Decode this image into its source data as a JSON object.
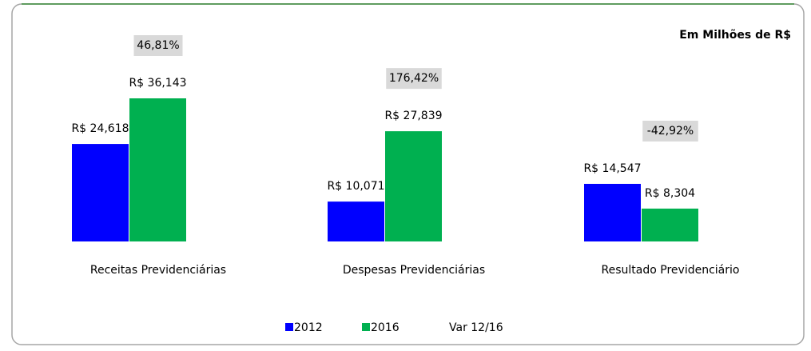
{
  "chart_data": {
    "type": "bar",
    "title": "Em Milhões de R$",
    "categories": [
      "Receitas Previdenciárias",
      "Despesas Previdenciárias",
      "Resultado Previdenciário"
    ],
    "series": [
      {
        "name": "2012",
        "color": "#0000ff",
        "values": [
          24.618,
          10.071,
          14.547
        ],
        "value_labels": [
          "R$ 24,618",
          "R$ 10,071",
          "R$ 14,547"
        ]
      },
      {
        "name": "2016",
        "color": "#00b050",
        "values": [
          36.143,
          27.839,
          8.304
        ],
        "value_labels": [
          "R$ 36,143",
          "R$ 27,839",
          "R$ 8,304"
        ]
      },
      {
        "name": "Var 12/16",
        "color": "#d9d9d9",
        "values": [
          46.81,
          176.42,
          -42.92
        ],
        "value_labels": [
          "46,81%",
          "176,42%",
          "-42,92%"
        ]
      }
    ]
  }
}
